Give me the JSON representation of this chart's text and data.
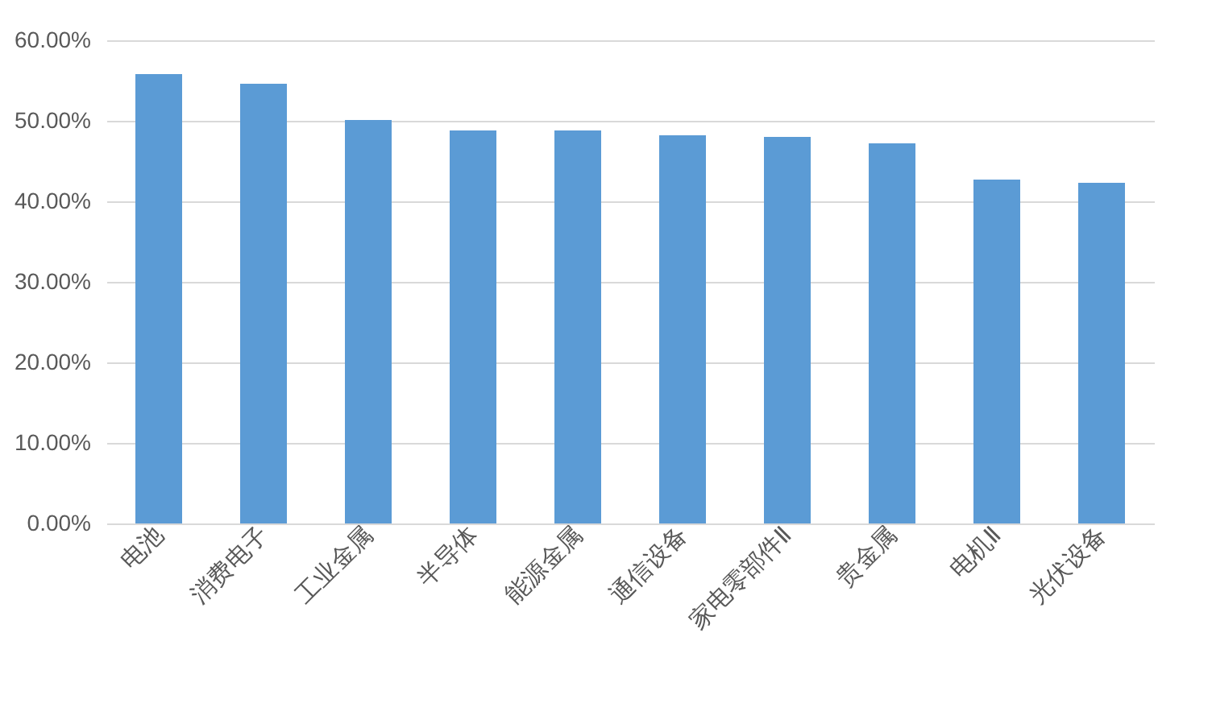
{
  "chart_data": {
    "type": "bar",
    "categories": [
      "电池",
      "消费电子",
      "工业金属",
      "半导体",
      "能源金属",
      "通信设备",
      "家电零部件Ⅱ",
      "贵金属",
      "电机Ⅱ",
      "光伏设备"
    ],
    "values": [
      55.8,
      54.6,
      50.1,
      48.8,
      48.8,
      48.2,
      48.0,
      47.2,
      42.7,
      42.3
    ],
    "color": "#5b9bd5",
    "ylim": [
      0,
      60
    ],
    "yticks": [
      {
        "value": 0,
        "label": "0.00%"
      },
      {
        "value": 10,
        "label": "10.00%"
      },
      {
        "value": 20,
        "label": "20.00%"
      },
      {
        "value": 30,
        "label": "30.00%"
      },
      {
        "value": 40,
        "label": "40.00%"
      },
      {
        "value": 50,
        "label": "50.00%"
      },
      {
        "value": 60,
        "label": "60.00%"
      }
    ],
    "grid": "y"
  }
}
